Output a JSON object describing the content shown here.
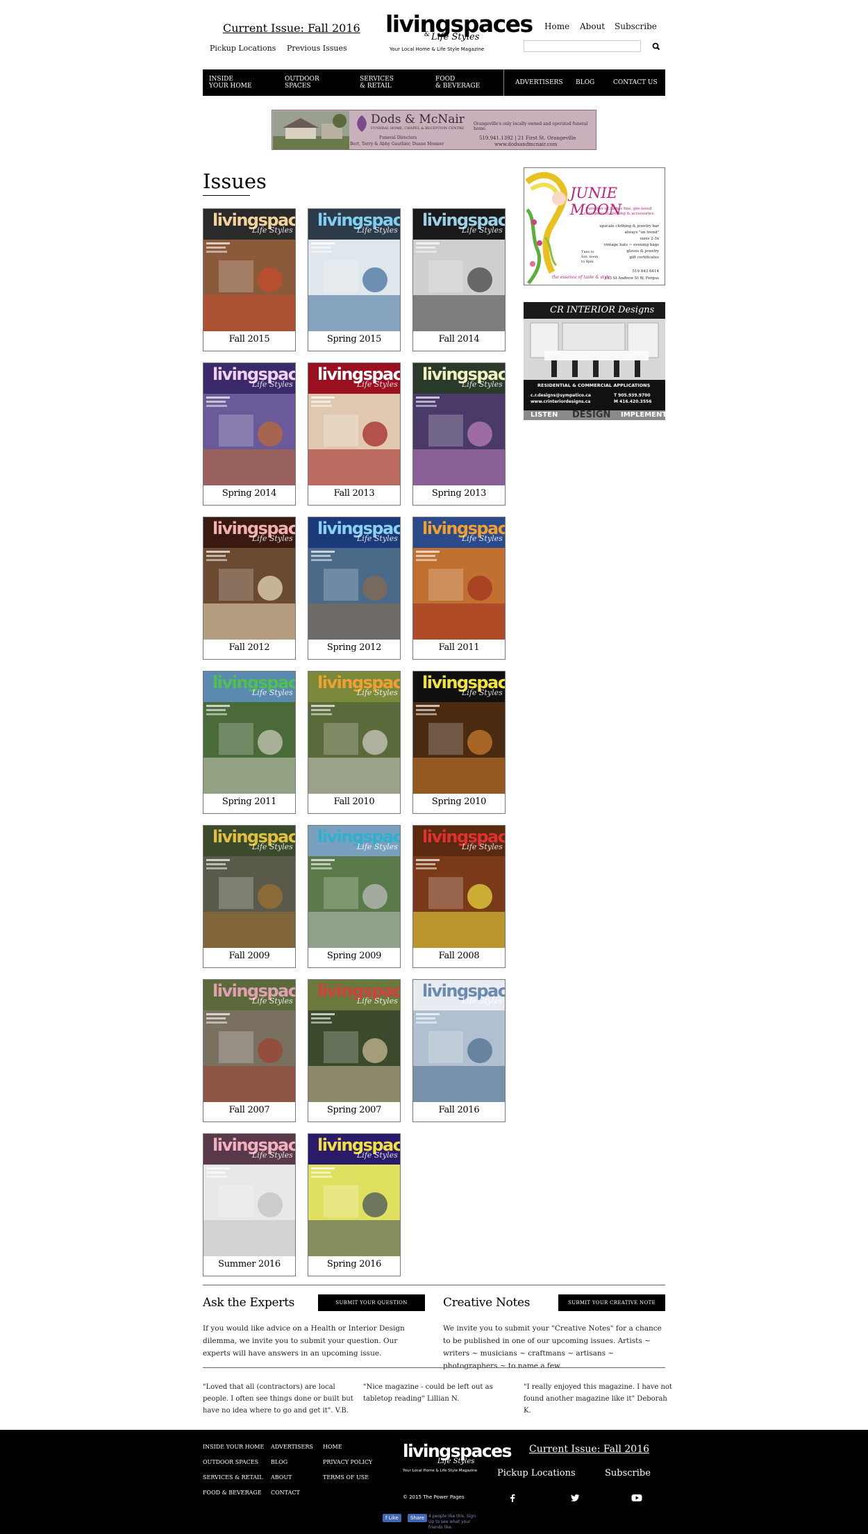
{
  "header": {
    "current_issue": "Current Issue: Fall 2016",
    "pickup": "Pickup Locations",
    "previous": "Previous Issues",
    "logo_main": "livingspaces",
    "logo_sub": "Life Styles",
    "logo_amp": "&",
    "tagline": "Your Local Home & Life Style Magazine",
    "links": [
      "Home",
      "About",
      "Subscribe"
    ],
    "search_placeholder": ""
  },
  "nav": {
    "items": [
      {
        "line1": "INSIDE",
        "line2": "YOUR HOME"
      },
      {
        "line1": "OUTDOOR",
        "line2": "SPACES"
      },
      {
        "line1": "SERVICES",
        "line2": "& RETAIL"
      },
      {
        "line1": "FOOD",
        "line2": "& BEVERAGE"
      }
    ],
    "right": [
      "ADVERTISERS",
      "BLOG",
      "CONTACT US"
    ]
  },
  "banner": {
    "name": "Dods & McNair",
    "sub": "FUNERAL HOME, CHAPEL & RECEPTION CENTRE",
    "headline": "Orangeville's only locally owned and operated funeral home.",
    "directors_label": "Funeral Directors",
    "directors": "Bert, Terry & Abby Gauthier, Duane Monner",
    "phone_addr": "519.941.1392  |  21 First St. Orangeville",
    "url": "www.dodsandmcnair.com"
  },
  "issues_title": "Issues",
  "issues": [
    {
      "label": "Fall 2015",
      "top": "#2a2a2a",
      "scene": "#8a5a3a",
      "accent": "#c94a2b",
      "brand": "#f2d29a"
    },
    {
      "label": "Spring 2015",
      "top": "#2c3a4a",
      "scene": "#dfe6ec",
      "accent": "#3a6a9a",
      "brand": "#7fd0f0"
    },
    {
      "label": "Fall 2014",
      "top": "#1a1a1a",
      "scene": "#cfcfcf",
      "accent": "#3a3a3a",
      "brand": "#9ad0e8"
    },
    {
      "label": "Spring 2014",
      "top": "#3a2a6a",
      "scene": "#6a5a9a",
      "accent": "#c06a30",
      "brand": "#f0d0f0"
    },
    {
      "label": "Fall 2013",
      "top": "#9a1020",
      "scene": "#e0c8b0",
      "accent": "#a02020",
      "brand": "#ffffff"
    },
    {
      "label": "Spring 2013",
      "top": "#2a3a2a",
      "scene": "#4a3a6a",
      "accent": "#c080c0",
      "brand": "#f0f0c0"
    },
    {
      "label": "Fall 2012",
      "top": "#3a1a10",
      "scene": "#6a4a30",
      "accent": "#f0e0c0",
      "brand": "#f0b0b0"
    },
    {
      "label": "Spring 2012",
      "top": "#1a3a7a",
      "scene": "#4a6a8a",
      "accent": "#8a6a4a",
      "brand": "#8ad0f0"
    },
    {
      "label": "Fall 2011",
      "top": "#2a4a8a",
      "scene": "#c07030",
      "accent": "#a03020",
      "brand": "#f0a030"
    },
    {
      "label": "Spring 2011",
      "top": "#5a8ab0",
      "scene": "#4a6a3a",
      "accent": "#d0d0c0",
      "brand": "#50c050"
    },
    {
      "label": "Fall 2010",
      "top": "#7a8a3a",
      "scene": "#5a6a3a",
      "accent": "#d0d0c8",
      "brand": "#f0a030"
    },
    {
      "label": "Spring 2010",
      "top": "#101010",
      "scene": "#4a2a10",
      "accent": "#d08030",
      "brand": "#f0e040"
    },
    {
      "label": "Fall 2009",
      "top": "#3a4a2a",
      "scene": "#5a5a4a",
      "accent": "#a07030",
      "brand": "#e0c040"
    },
    {
      "label": "Spring 2009",
      "top": "#7aa0c0",
      "scene": "#5a7a4a",
      "accent": "#c0c0c0",
      "brand": "#30b0d0"
    },
    {
      "label": "Fall 2008",
      "top": "#5a2a10",
      "scene": "#7a3a1a",
      "accent": "#f0e040",
      "brand": "#e03030"
    },
    {
      "label": "Fall 2007",
      "top": "#5a6a3a",
      "scene": "#7a7060",
      "accent": "#a04030",
      "brand": "#e0a0b0"
    },
    {
      "label": "Spring 2007",
      "top": "#6a7a3a",
      "scene": "#3a4a2a",
      "accent": "#d0c0a0",
      "brand": "#d04040"
    },
    {
      "label": "Fall 2016",
      "top": "#e8ecf0",
      "scene": "#b0c0d0",
      "accent": "#4a6a8a",
      "brand": "#6a8ab0"
    },
    {
      "label": "Summer 2016",
      "top": "#5a3a4a",
      "scene": "#e8e8e8",
      "accent": "#c0c0c0",
      "brand": "#f0b0c0"
    },
    {
      "label": "Spring 2016",
      "top": "#2a1a6a",
      "scene": "#e0e060",
      "accent": "#3a4a5a",
      "brand": "#f0e040"
    }
  ],
  "ad1": {
    "title": "JUNIE MOON",
    "tagline": "Purveyor of Ladies fine, pre-loved consignment clothing & accessories",
    "list": [
      "upscale clothing & jewelry bar",
      "always \"on trend\"",
      "sizes 2-3x",
      "vintage hats ~ evening bags",
      "gloves & jewelry",
      "gift certificates"
    ],
    "hours": "Tues to Sat. noon to 4pm",
    "phone": "519 843 6414",
    "address": "133 St Andrew St W, Fergus",
    "script": "the essence of taste & style"
  },
  "ad2": {
    "title": "CR INTERIOR Designs",
    "apps": "RESIDENTIAL & COMMERCIAL APPLICATIONS",
    "email": "c.r.designs@sympatico.ca",
    "web": "www.crinteriordesigns.ca",
    "tel": "T  905.939.9700",
    "mob": "M  416.420.3556",
    "w1": "LISTEN",
    "w2": "DESIGN",
    "w3": "IMPLEMENT"
  },
  "experts": {
    "title": "Ask the Experts",
    "button": "SUBMIT YOUR QUESTION",
    "text": "If you would like advice on a Health or Interior Design dilemma, we invite you to submit your question. Our experts will have answers in an upcoming issue."
  },
  "notes": {
    "title": "Creative Notes",
    "button": "SUBMIT YOUR CREATIVE NOTE",
    "text": "We invite you to submit your \"Creative Notes\" for a chance to be published in one of our upcoming issues. Artists ~ writers ~ musicians ~ craftmans ~ artisans ~ photographers ~ to name a few."
  },
  "quotes": [
    "\"Loved that all (contractors) are local people. I often see things done or built but have no idea where to go and get it\". V.B.",
    "\"Nice magazine - could be left out as tabletop reading\" Lillian N.",
    "\"I really enjoyed this magazine. I have not found another magazine like it\" Deborah K."
  ],
  "footer": {
    "col1": [
      "INSIDE YOUR HOME",
      "OUTDOOR SPACES",
      "SERVICES & RETAIL",
      "FOOD & BEVERAGE"
    ],
    "col2": [
      "ADVERTISERS",
      "BLOG",
      "ABOUT",
      "CONTACT"
    ],
    "col3": [
      "HOME",
      "PRIVACY POLICY",
      "TERMS OF USE"
    ],
    "copyright": "© 2015 The Power Pages",
    "current": "Current Issue: Fall 2016",
    "pickup": "Pickup Locations",
    "subscribe": "Subscribe",
    "fb_like": "Like",
    "fb_share": "Share",
    "fb_text": "4 people like this. Sign Up to see what your friends like."
  },
  "colors": {
    "black": "#000000",
    "banner_bg": "#c9b1bb",
    "fb": "#4267b2"
  }
}
